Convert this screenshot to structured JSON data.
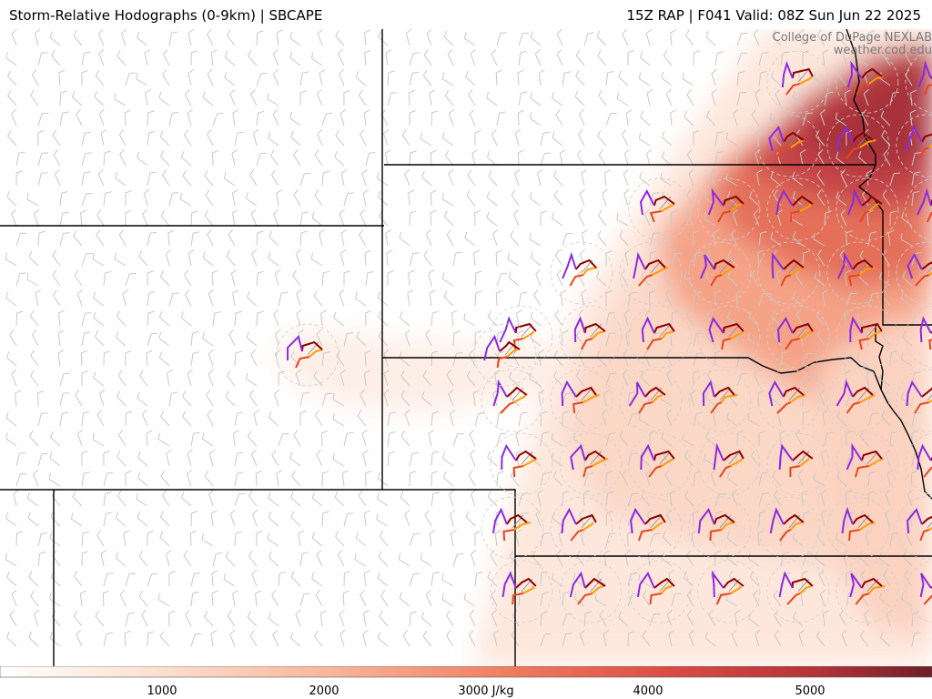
{
  "header": {
    "title_left": "Storm-Relative Hodographs (0-9km) | SBCAPE",
    "title_right": "15Z RAP | F041 Valid: 08Z Sun Jun 22 2025"
  },
  "credit": {
    "line1": "College of DuPage NEXLAB",
    "line2": "weather.cod.edu"
  },
  "colorbar": {
    "unit": "J/kg",
    "min": 0,
    "max": 5750,
    "ticks": [
      {
        "value": 1000,
        "label": "1000"
      },
      {
        "value": 2000,
        "label": "2000"
      },
      {
        "value": 3000,
        "label": "3000 J/kg"
      },
      {
        "value": 4000,
        "label": "4000"
      },
      {
        "value": 5000,
        "label": "5000"
      }
    ]
  },
  "colors": {
    "cape_low": "#fff1ea",
    "cape_mid": "#f7a386",
    "cape_high": "#bf3a3c",
    "cape_max": "#7a1f24",
    "hodo_0_1km": "#e8451b",
    "hodo_1_3km": "#ff9c00",
    "hodo_3_6km": "#8b0000",
    "hodo_6_9km": "#8a2be2",
    "state_border": "#000000",
    "barb": "#c8c8c8"
  },
  "legend_layers": [
    "sbcape-fill",
    "hodographs",
    "wind-barbs",
    "state-borders"
  ]
}
